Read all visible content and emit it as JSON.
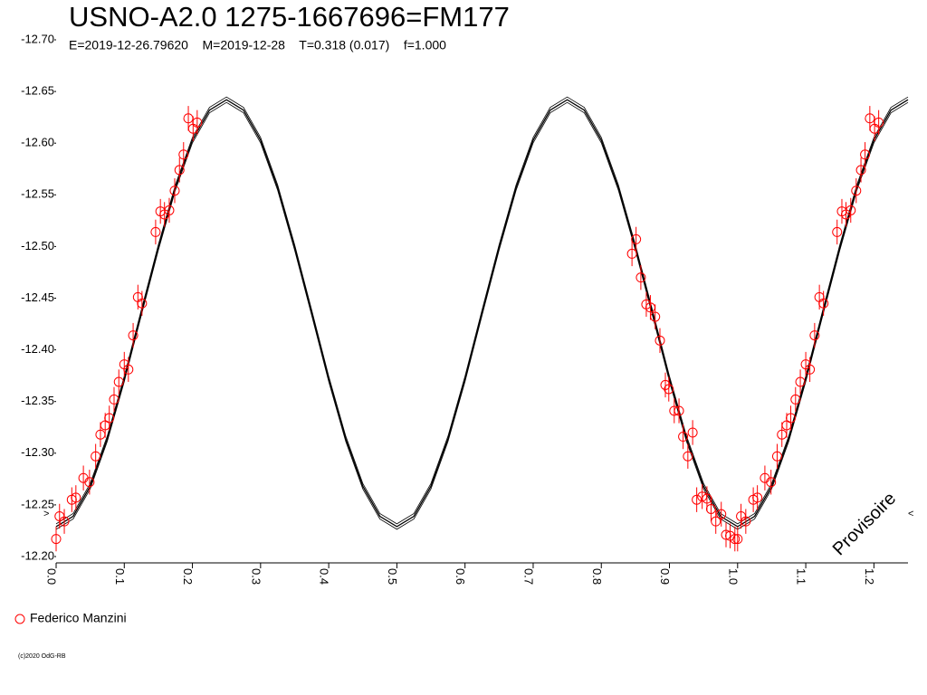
{
  "chart_data": {
    "type": "scatter",
    "title": "USNO-A2.0 1275-1667696=FM177",
    "subtitle": "E=2019-12-26.79620    M=2019-12-28    T=0.318 (0.017)    f=1.000",
    "watermark": "Provisoire",
    "markers": [
      ">",
      "<"
    ],
    "footer": "(c)2020 OdG-RB",
    "xlim": [
      0,
      1.25
    ],
    "ylim": [
      -12.7,
      -12.2
    ],
    "xticks": [
      {
        "value": 0,
        "label": "0.0"
      },
      0.1,
      0.2,
      0.3,
      0.4,
      0.5,
      0.6,
      0.7,
      0.8,
      0.9,
      {
        "value": 1,
        "label": "1.0"
      },
      1.1,
      1.2
    ],
    "yticks": [
      {
        "value": -12.7,
        "label": "-12.70"
      },
      -12.65,
      {
        "value": -12.6,
        "label": "-12.60"
      },
      -12.55,
      {
        "value": -12.5,
        "label": "-12.50"
      },
      -12.45,
      {
        "value": -12.4,
        "label": "-12.40"
      },
      -12.35,
      {
        "value": -12.3,
        "label": "-12.30"
      },
      -12.25,
      {
        "value": -12.2,
        "label": "-12.20"
      }
    ],
    "series": [
      {
        "name": "Federico Manzini",
        "color": "#ff0000",
        "error": 0.012,
        "x": [
          0.0,
          0.005,
          0.012,
          0.023,
          0.029,
          0.04,
          0.049,
          0.058,
          0.065,
          0.072,
          0.078,
          0.085,
          0.092,
          0.1,
          0.106,
          0.113,
          0.12,
          0.126,
          0.146,
          0.153,
          0.159,
          0.166,
          0.174,
          0.181,
          0.187,
          0.194,
          0.201,
          0.207,
          0.845,
          0.851,
          0.858,
          0.866,
          0.872,
          0.879,
          0.886,
          0.894,
          0.899,
          0.907,
          0.914,
          0.92,
          0.927,
          0.934,
          0.94,
          0.948,
          0.955,
          0.961,
          0.968,
          0.976,
          0.983,
          0.989,
          0.996,
          1.0,
          1.005,
          1.012,
          1.023,
          1.029,
          1.04,
          1.049,
          1.058,
          1.065,
          1.072,
          1.078,
          1.085,
          1.092,
          1.1,
          1.106,
          1.113,
          1.12,
          1.126,
          1.146,
          1.153,
          1.159,
          1.166,
          1.174,
          1.181,
          1.187,
          1.194,
          1.201,
          1.207
        ],
        "values": [
          -12.217,
          -12.239,
          -12.234,
          -12.255,
          -12.257,
          -12.276,
          -12.272,
          -12.297,
          -12.318,
          -12.327,
          -12.334,
          -12.352,
          -12.369,
          -12.386,
          -12.381,
          -12.414,
          -12.451,
          -12.445,
          -12.514,
          -12.534,
          -12.531,
          -12.535,
          -12.554,
          -12.574,
          -12.589,
          -12.624,
          -12.614,
          -12.62,
          -12.493,
          -12.507,
          -12.47,
          -12.444,
          -12.441,
          -12.432,
          -12.409,
          -12.366,
          -12.362,
          -12.341,
          -12.341,
          -12.316,
          -12.297,
          -12.32,
          -12.255,
          -12.258,
          -12.256,
          -12.246,
          -12.234,
          -12.241,
          -12.221,
          -12.22,
          -12.217,
          -12.217,
          -12.239,
          -12.234,
          -12.255,
          -12.257,
          -12.276,
          -12.272,
          -12.297,
          -12.318,
          -12.327,
          -12.334,
          -12.352,
          -12.369,
          -12.386,
          -12.381,
          -12.414,
          -12.451,
          -12.445,
          -12.514,
          -12.534,
          -12.531,
          -12.535,
          -12.554,
          -12.574,
          -12.589,
          -12.624,
          -12.614,
          -12.62
        ]
      }
    ],
    "fit": {
      "color": "#000000",
      "x": [
        0,
        0.025,
        0.05,
        0.075,
        0.1,
        0.125,
        0.15,
        0.175,
        0.2,
        0.225,
        0.25,
        0.275,
        0.3,
        0.325,
        0.35,
        0.375,
        0.4,
        0.425,
        0.45,
        0.475,
        0.5,
        0.525,
        0.55,
        0.575,
        0.6,
        0.625,
        0.65,
        0.675,
        0.7,
        0.725,
        0.75,
        0.775,
        0.8,
        0.825,
        0.85,
        0.875,
        0.9,
        0.925,
        0.95,
        0.975,
        1.0,
        1.025,
        1.05,
        1.075,
        1.1,
        1.125,
        1.15,
        1.175,
        1.2,
        1.225,
        1.25
      ],
      "values": [
        -12.229,
        -12.239,
        -12.268,
        -12.314,
        -12.372,
        -12.436,
        -12.499,
        -12.557,
        -12.603,
        -12.632,
        -12.642,
        -12.632,
        -12.603,
        -12.557,
        -12.499,
        -12.436,
        -12.372,
        -12.314,
        -12.268,
        -12.239,
        -12.229,
        -12.239,
        -12.268,
        -12.314,
        -12.372,
        -12.436,
        -12.499,
        -12.557,
        -12.603,
        -12.632,
        -12.642,
        -12.632,
        -12.603,
        -12.557,
        -12.499,
        -12.436,
        -12.372,
        -12.314,
        -12.268,
        -12.239,
        -12.229,
        -12.239,
        -12.268,
        -12.314,
        -12.372,
        -12.436,
        -12.499,
        -12.557,
        -12.603,
        -12.632,
        -12.642
      ]
    }
  }
}
